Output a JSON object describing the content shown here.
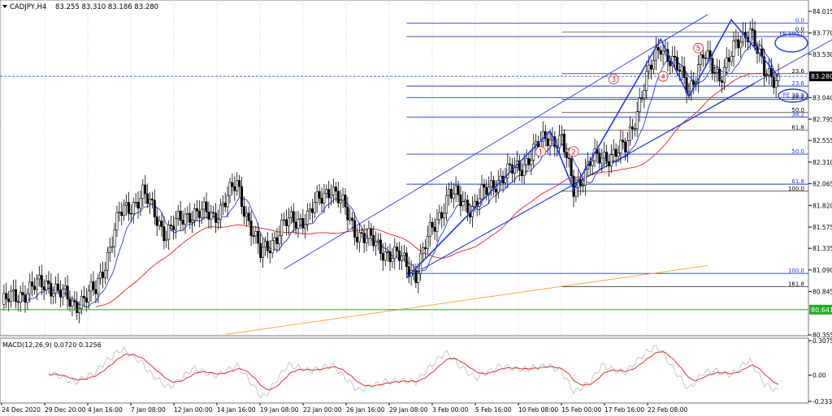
{
  "header": {
    "symbol_label": "CADJPY,H4",
    "ohlc": "83.255 83.310 83.186 83.280",
    "dropdown_icon": "triangle-down-icon"
  },
  "chart_data": [
    {
      "type": "candlestick",
      "symbol": "CADJPY",
      "timeframe": "H4",
      "ylim": [
        80.355,
        84.015
      ],
      "y_ticks": [
        "84.015",
        "83.770",
        "83.530",
        "83.280",
        "83.040",
        "82.795",
        "82.555",
        "82.310",
        "82.065",
        "81.820",
        "81.575",
        "81.335",
        "81.090",
        "80.845",
        "80.641",
        "80.355"
      ],
      "x_ticks": [
        "24 Dec 2020",
        "29 Dec 20:00",
        "4 Jan 16:00",
        "7 Jan 08:00",
        "12 Jan 00:00",
        "14 Jan 16:00",
        "19 Jan 08:00",
        "22 Jan 00:00",
        "26 Jan 16:00",
        "29 Jan 08:00",
        "3 Feb 00:00",
        "5 Feb 16:00",
        "10 Feb 08:00",
        "15 Feb 00:00",
        "17 Feb 16:00",
        "22 Feb 08:00"
      ],
      "current_price": "83.280",
      "horizontal_line_price": "80.641",
      "close_path": [
        {
          "i": 0,
          "c": 80.7
        },
        {
          "i": 10,
          "c": 80.85
        },
        {
          "i": 20,
          "c": 80.95
        },
        {
          "i": 30,
          "c": 80.7
        },
        {
          "i": 40,
          "c": 80.85
        },
        {
          "i": 50,
          "c": 81.7
        },
        {
          "i": 60,
          "c": 81.95
        },
        {
          "i": 70,
          "c": 81.5
        },
        {
          "i": 80,
          "c": 81.75
        },
        {
          "i": 90,
          "c": 81.7
        },
        {
          "i": 100,
          "c": 82.05
        },
        {
          "i": 110,
          "c": 81.25
        },
        {
          "i": 120,
          "c": 81.6
        },
        {
          "i": 130,
          "c": 81.7
        },
        {
          "i": 140,
          "c": 82.05
        },
        {
          "i": 150,
          "c": 81.55
        },
        {
          "i": 160,
          "c": 81.35
        },
        {
          "i": 170,
          "c": 81.2
        },
        {
          "i": 176,
          "c": 81.05
        },
        {
          "i": 182,
          "c": 81.5
        },
        {
          "i": 190,
          "c": 81.95
        },
        {
          "i": 200,
          "c": 81.8
        },
        {
          "i": 210,
          "c": 82.1
        },
        {
          "i": 220,
          "c": 82.25
        },
        {
          "i": 232,
          "c": 82.6
        },
        {
          "i": 238,
          "c": 82.55
        },
        {
          "i": 243,
          "c": 82.0
        },
        {
          "i": 250,
          "c": 82.3
        },
        {
          "i": 258,
          "c": 82.4
        },
        {
          "i": 265,
          "c": 82.45
        },
        {
          "i": 272,
          "c": 83.1
        },
        {
          "i": 280,
          "c": 83.65
        },
        {
          "i": 286,
          "c": 83.4
        },
        {
          "i": 292,
          "c": 83.15
        },
        {
          "i": 298,
          "c": 83.5
        },
        {
          "i": 305,
          "c": 83.3
        },
        {
          "i": 312,
          "c": 83.6
        },
        {
          "i": 318,
          "c": 83.85
        },
        {
          "i": 324,
          "c": 83.3
        },
        {
          "i": 330,
          "c": 83.28
        }
      ],
      "fibonacci_levels": [
        {
          "label": "0.0",
          "price": 83.88
        },
        {
          "label": "FE 100.0",
          "price": 83.73
        },
        {
          "label": "23.6",
          "price": 83.17
        },
        {
          "label": "FE 38.2",
          "price": 83.04
        },
        {
          "label": "38.2",
          "price": 82.82
        },
        {
          "label": "50.0",
          "price": 82.4
        },
        {
          "label": "61.8",
          "price": 82.06
        },
        {
          "label": "100.0",
          "price": 81.05
        }
      ],
      "retracement_levels": [
        {
          "label": "0.0",
          "price": 83.78
        },
        {
          "label": "23.6",
          "price": 83.31
        },
        {
          "label": "38.2",
          "price": 83.02
        },
        {
          "label": "50.0",
          "price": 82.87
        },
        {
          "label": "61.8",
          "price": 82.67
        },
        {
          "label": "100.0",
          "price": 81.98
        },
        {
          "label": "161.8",
          "price": 80.9
        }
      ],
      "wave_labels": [
        "1",
        "2",
        "3",
        "4",
        "5"
      ],
      "wave_points": [
        {
          "label": "1",
          "i": 229,
          "p": 82.43
        },
        {
          "label": "2",
          "i": 243,
          "p": 82.43
        },
        {
          "label": "3",
          "i": 260,
          "p": 83.25
        },
        {
          "label": "4",
          "i": 281,
          "p": 83.28
        },
        {
          "label": "5",
          "i": 296,
          "p": 83.6
        }
      ],
      "zigzag": [
        {
          "i": 172,
          "p": 81.0
        },
        {
          "i": 233,
          "p": 82.66
        },
        {
          "i": 243,
          "p": 82.0
        },
        {
          "i": 280,
          "p": 83.7
        },
        {
          "i": 292,
          "p": 83.05
        },
        {
          "i": 310,
          "p": 83.92
        },
        {
          "i": 330,
          "p": 83.28
        }
      ],
      "channel_lines": [
        {
          "from": {
            "i": 120,
            "p": 81.1
          },
          "to": {
            "i": 300,
            "p": 83.98
          }
        },
        {
          "from": {
            "i": 172,
            "p": 81.0
          },
          "to": {
            "i": 380,
            "p": 84.1
          }
        },
        {
          "from": {
            "i": 172,
            "p": 81.0
          },
          "to": {
            "i": 320,
            "p": 83.2
          }
        }
      ],
      "moving_averages": [
        {
          "color": "#1e3adc",
          "period_hint": "fast"
        },
        {
          "color": "#dc2020",
          "period_hint": "medium"
        },
        {
          "color": "#f0a030",
          "period_hint": "slow"
        }
      ]
    },
    {
      "type": "line",
      "indicator_label": "MACD(12,26,9) 0.0720 0.1256",
      "ylim": [
        -0.233,
        0.3075
      ],
      "y_ticks": [
        "0.3075",
        "0.00",
        "-0.233"
      ],
      "series": [
        {
          "values_hint": "main",
          "color": "#c0c0c0"
        },
        {
          "values_hint": "signal",
          "color": "#e03030"
        }
      ]
    }
  ],
  "colors": {
    "background": "#ffffff",
    "grid": "#d8d8d8",
    "candle": "#000000",
    "fib": "#1e3adc",
    "wave": "#e03030",
    "current_price_tag": "#000000",
    "hline_tag": "#22aa22"
  }
}
